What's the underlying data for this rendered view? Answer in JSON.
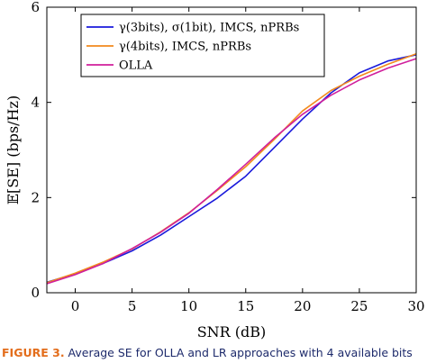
{
  "caption": {
    "figure_number": "FIGURE 3.",
    "text": "Average SE for OLLA and LR approaches with 4 available bits",
    "accent_color": "#e36d1b",
    "text_color": "#1d2a6b"
  },
  "chart_data": {
    "type": "line",
    "xlabel": "SNR (dB)",
    "ylabel": "𝔼[SE] (bps/Hz)",
    "xlim": [
      -2.5,
      30
    ],
    "ylim": [
      0,
      6
    ],
    "xticks": [
      0,
      5,
      10,
      15,
      20,
      25,
      30
    ],
    "yticks": [
      0,
      2,
      4,
      6
    ],
    "grid": false,
    "legend_position": "top-left",
    "x": [
      -2.5,
      0,
      2.5,
      5,
      7.5,
      10,
      12.5,
      15,
      17.5,
      20,
      22.5,
      25,
      27.5,
      30
    ],
    "series": [
      {
        "name": "γ(3bits), σ(1bit), IMCS, nPRBs",
        "color": "#1a1adb",
        "values": [
          0.22,
          0.4,
          0.62,
          0.88,
          1.21,
          1.6,
          1.99,
          2.45,
          3.05,
          3.65,
          4.2,
          4.62,
          4.87,
          5.0
        ]
      },
      {
        "name": "γ(4bits), IMCS, nPRBs",
        "color": "#f28a1c",
        "values": [
          0.21,
          0.41,
          0.65,
          0.92,
          1.28,
          1.68,
          2.15,
          2.65,
          3.22,
          3.82,
          4.25,
          4.55,
          4.8,
          5.02
        ]
      },
      {
        "name": "OLLA",
        "color": "#d01f9c",
        "values": [
          0.19,
          0.38,
          0.62,
          0.93,
          1.27,
          1.67,
          2.17,
          2.7,
          3.25,
          3.75,
          4.15,
          4.47,
          4.72,
          4.92
        ]
      }
    ]
  }
}
